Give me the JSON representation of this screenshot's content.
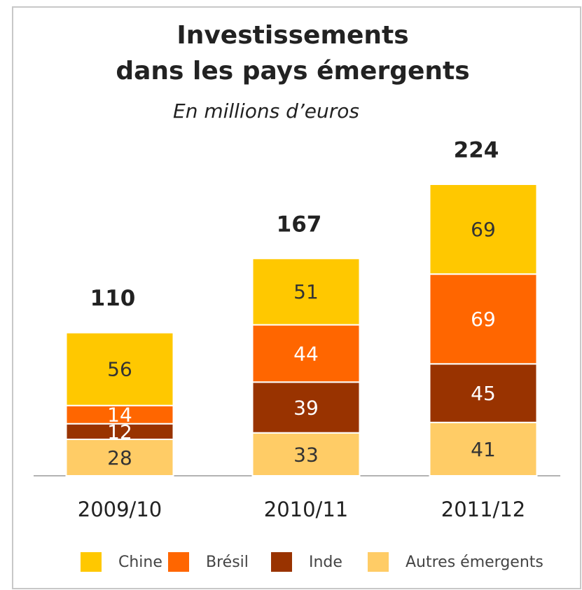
{
  "chart_data": {
    "type": "stacked_bar",
    "title": [
      "Investissements",
      "dans les pays émergents"
    ],
    "subtitle": "En millions d’euros",
    "categories": [
      "2009/10",
      "2010/11",
      "2011/12"
    ],
    "series": [
      {
        "name": "Chine",
        "color": "#ffc800",
        "label_color": "#333333",
        "values": [
          56,
          51,
          69
        ]
      },
      {
        "name": "Brésil",
        "color": "#ff6600",
        "label_color": "#ffffff",
        "values": [
          14,
          44,
          69
        ]
      },
      {
        "name": "Inde",
        "color": "#993300",
        "label_color": "#ffffff",
        "values": [
          12,
          39,
          45
        ]
      },
      {
        "name": "Autres émergents",
        "color": "#ffcc66",
        "label_color": "#333333",
        "values": [
          28,
          33,
          41
        ]
      }
    ],
    "totals": [
      110,
      167,
      224
    ]
  }
}
